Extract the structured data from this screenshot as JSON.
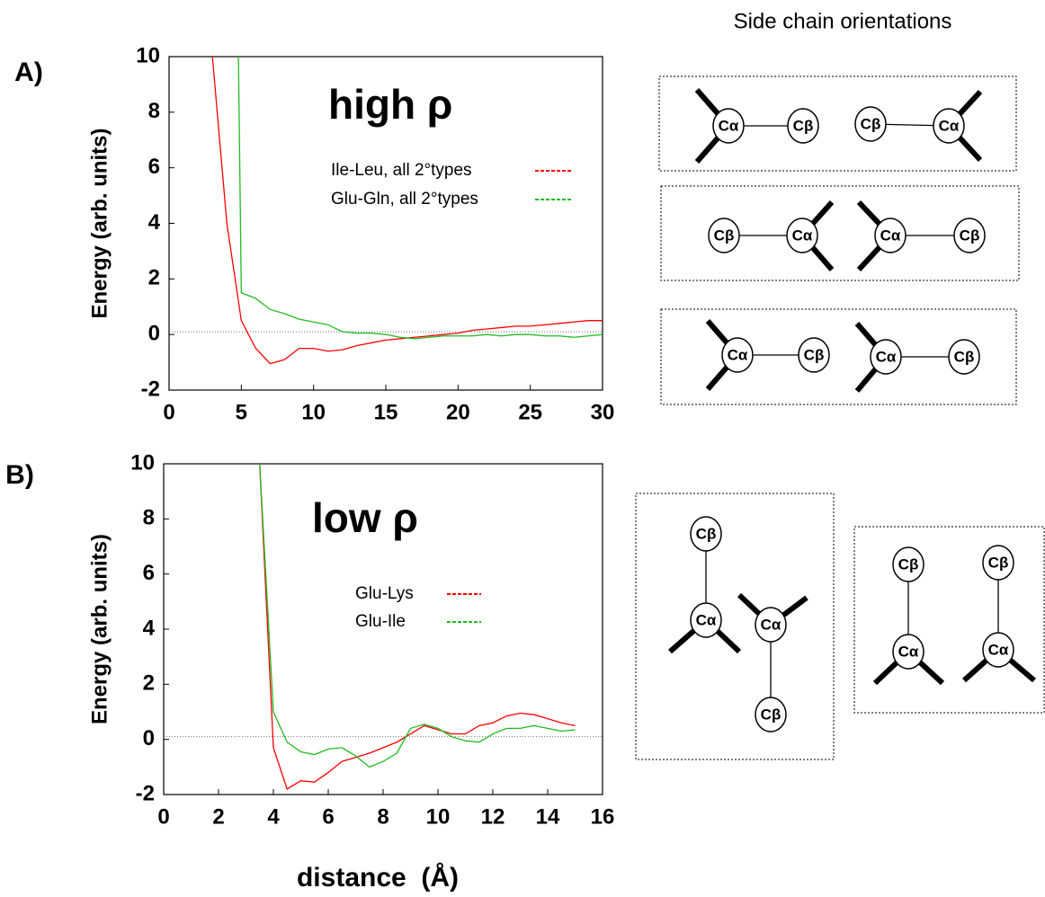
{
  "chart_data": [
    {
      "type": "line",
      "panel": "A)",
      "annotation": "high ρ",
      "ylabel": "Energy (arb. units)",
      "xlim": [
        0,
        30
      ],
      "ylim": [
        -2,
        10
      ],
      "xticks": [
        0,
        5,
        10,
        15,
        20,
        25,
        30
      ],
      "yticks": [
        -2,
        0,
        2,
        4,
        6,
        8,
        10
      ],
      "hline": 0.1,
      "series": [
        {
          "name": "Ile-Leu, all 2°types",
          "color": "#ff0000",
          "x": [
            3,
            4,
            5,
            6,
            7,
            8,
            9,
            10,
            11,
            12,
            13,
            14,
            15,
            16,
            17,
            18,
            19,
            20,
            21,
            22,
            23,
            24,
            25,
            26,
            27,
            28,
            29,
            30
          ],
          "values": [
            10,
            4,
            0.5,
            -0.5,
            -1.05,
            -0.9,
            -0.5,
            -0.5,
            -0.6,
            -0.55,
            -0.4,
            -0.3,
            -0.2,
            -0.15,
            -0.1,
            -0.05,
            0,
            0.05,
            0.15,
            0.2,
            0.25,
            0.3,
            0.3,
            0.35,
            0.4,
            0.45,
            0.5,
            0.5
          ]
        },
        {
          "name": "Glu-Gln, all 2°types",
          "color": "#22bb22",
          "x": [
            4.8,
            5,
            6,
            7,
            8,
            9,
            10,
            11,
            12,
            13,
            14,
            15,
            16,
            17,
            18,
            19,
            20,
            21,
            22,
            23,
            24,
            25,
            26,
            27,
            28,
            29,
            30
          ],
          "values": [
            10,
            1.5,
            1.3,
            0.9,
            0.75,
            0.55,
            0.45,
            0.35,
            0.1,
            0.05,
            0.05,
            0,
            -0.1,
            -0.15,
            -0.1,
            -0.05,
            -0.05,
            -0.05,
            0,
            -0.05,
            0,
            0,
            -0.05,
            -0.05,
            -0.1,
            -0.05,
            0
          ]
        }
      ]
    },
    {
      "type": "line",
      "panel": "B)",
      "annotation": "low ρ",
      "ylabel": "Energy (arb. units)",
      "xlabel": "distance  (Å)",
      "xlim": [
        0,
        16
      ],
      "ylim": [
        -2,
        10
      ],
      "xticks": [
        0,
        2,
        4,
        6,
        8,
        10,
        12,
        14,
        16
      ],
      "yticks": [
        -2,
        0,
        2,
        4,
        6,
        8,
        10
      ],
      "hline": 0.1,
      "series": [
        {
          "name": "Glu-Lys",
          "color": "#ff0000",
          "x": [
            3.5,
            4,
            4.5,
            5,
            5.5,
            6,
            6.5,
            7,
            7.5,
            8,
            8.5,
            9,
            9.5,
            10,
            10.5,
            11,
            11.5,
            12,
            12.5,
            13,
            13.5,
            14,
            14.5,
            15
          ],
          "values": [
            10,
            -0.3,
            -1.8,
            -1.5,
            -1.55,
            -1.2,
            -0.8,
            -0.65,
            -0.5,
            -0.3,
            -0.1,
            0.2,
            0.5,
            0.35,
            0.2,
            0.2,
            0.5,
            0.6,
            0.85,
            0.95,
            0.9,
            0.75,
            0.6,
            0.5
          ]
        },
        {
          "name": "Glu-Ile",
          "color": "#22bb22",
          "x": [
            3.5,
            4,
            4.5,
            5,
            5.5,
            6,
            6.5,
            7,
            7.5,
            8,
            8.5,
            9,
            9.5,
            10,
            10.5,
            11,
            11.5,
            12,
            12.5,
            13,
            13.5,
            14,
            14.5,
            15
          ],
          "values": [
            10,
            1,
            -0.1,
            -0.45,
            -0.55,
            -0.35,
            -0.3,
            -0.6,
            -1.0,
            -0.8,
            -0.5,
            0.4,
            0.55,
            0.4,
            0.1,
            -0.05,
            -0.1,
            0.2,
            0.4,
            0.4,
            0.5,
            0.4,
            0.3,
            0.35
          ]
        }
      ]
    }
  ],
  "diagram": {
    "title": "Side chain orientations",
    "atoms": [
      "Cα",
      "Cβ"
    ]
  }
}
